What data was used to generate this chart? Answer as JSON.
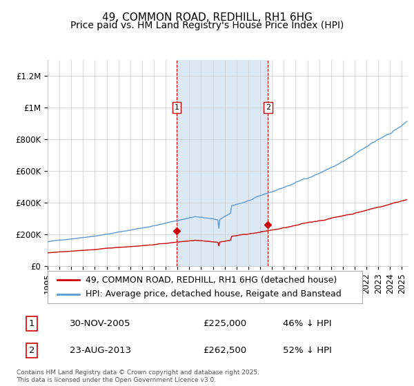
{
  "title": "49, COMMON ROAD, REDHILL, RH1 6HG",
  "subtitle": "Price paid vs. HM Land Registry's House Price Index (HPI)",
  "ylim": [
    0,
    1300000
  ],
  "yticks": [
    0,
    200000,
    400000,
    600000,
    800000,
    1000000,
    1200000
  ],
  "ytick_labels": [
    "£0",
    "£200K",
    "£400K",
    "£600K",
    "£800K",
    "£1M",
    "£1.2M"
  ],
  "x_start_year": 1995,
  "x_end_year": 2025,
  "sale1_date": 2005.92,
  "sale1_label": "30-NOV-2005",
  "sale1_price": 225000,
  "sale1_text": "£225,000",
  "sale1_pct": "46% ↓ HPI",
  "sale2_date": 2013.65,
  "sale2_label": "23-AUG-2013",
  "sale2_price": 262500,
  "sale2_text": "£262,500",
  "sale2_pct": "52% ↓ HPI",
  "red_color": "#cc0000",
  "blue_color": "#5b9bd5",
  "shade_color": "#dce9f5",
  "grid_color": "#cccccc",
  "bg_color": "#ffffff",
  "legend1": "49, COMMON ROAD, REDHILL, RH1 6HG (detached house)",
  "legend2": "HPI: Average price, detached house, Reigate and Banstead",
  "footer": "Contains HM Land Registry data © Crown copyright and database right 2025.\nThis data is licensed under the Open Government Licence v3.0.",
  "title_fontsize": 11,
  "subtitle_fontsize": 10,
  "tick_fontsize": 8.5,
  "legend_fontsize": 9
}
